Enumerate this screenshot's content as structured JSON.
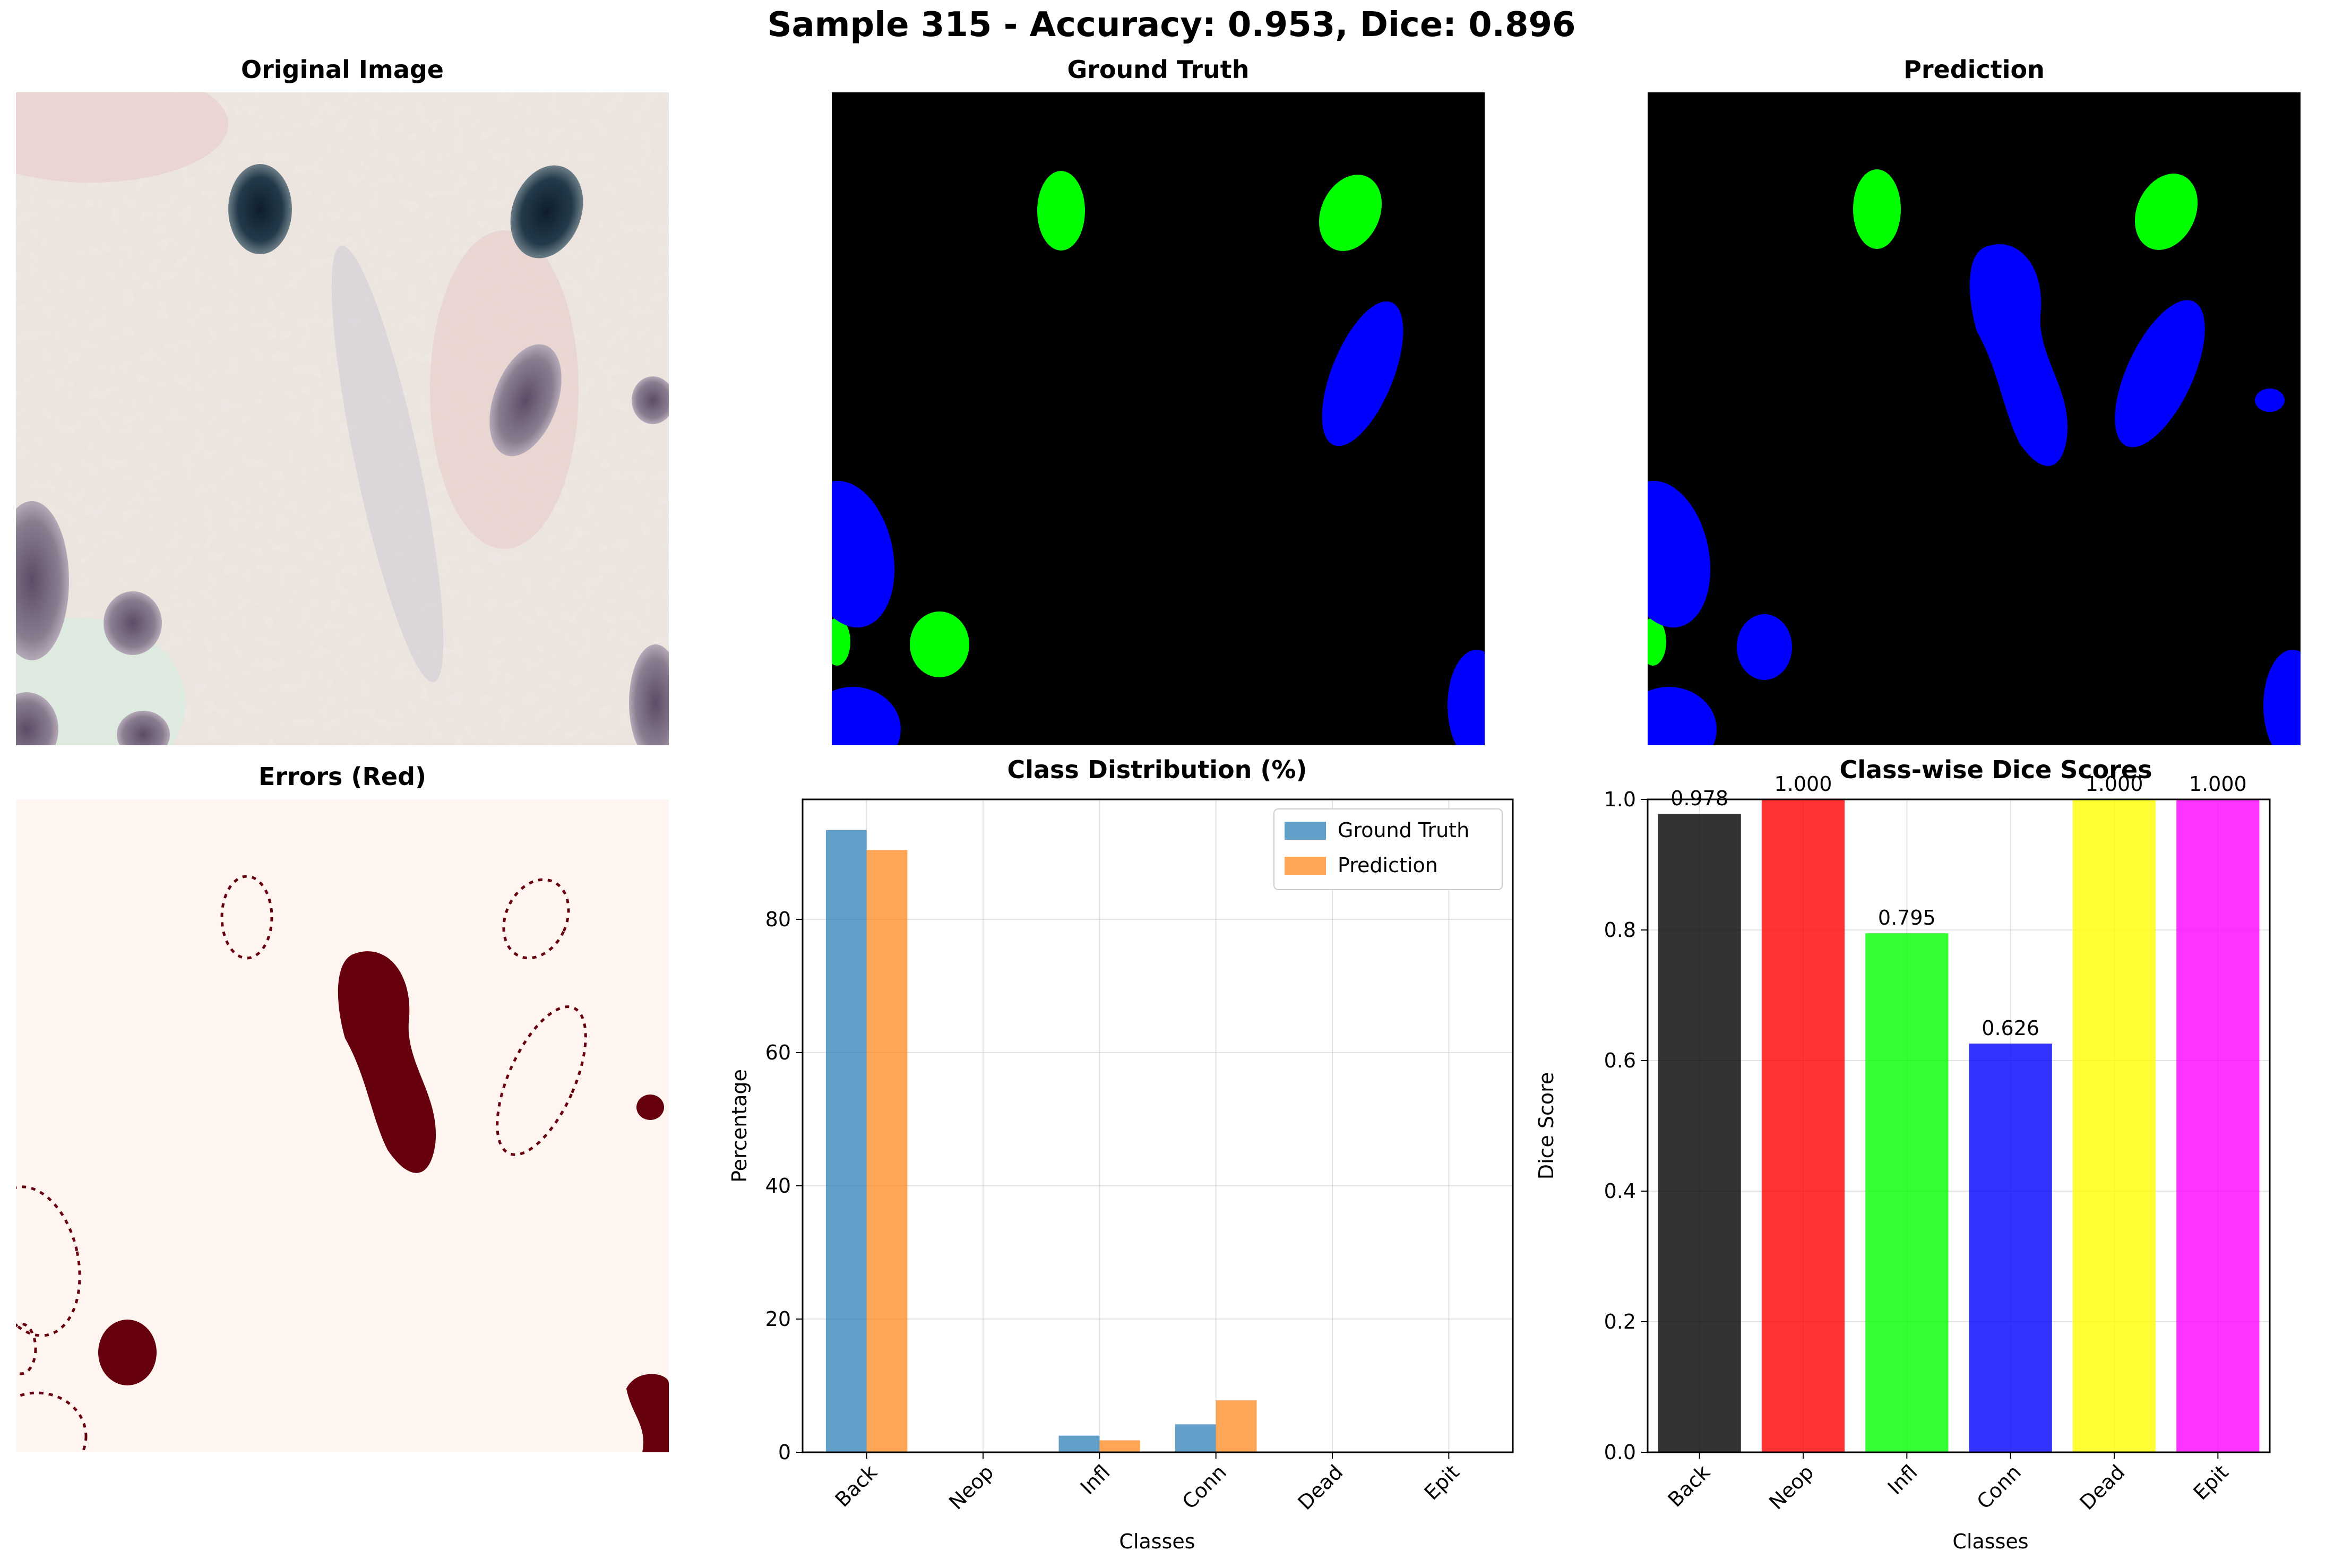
{
  "figure": {
    "title": "Sample 315 - Accuracy: 0.953, Dice: 0.896"
  },
  "panels": {
    "original": {
      "title": "Original Image"
    },
    "ground_truth": {
      "title": "Ground Truth"
    },
    "prediction": {
      "title": "Prediction"
    },
    "errors": {
      "title": "Errors (Red)"
    }
  },
  "colors": {
    "mask_background": "#000000",
    "green": "#00ff00",
    "blue": "#0000ff",
    "error_bg": "#fff5f0",
    "error_fg": "#67000d",
    "gt_bar": "#1f77b4",
    "pred_bar": "#ff7f0e",
    "dice_colors": [
      "#000000",
      "#ff0000",
      "#00ff00",
      "#0000ff",
      "#ffff00",
      "#ff00ff"
    ]
  },
  "chart_data": [
    {
      "type": "bar",
      "title": "Class Distribution (%)",
      "xlabel": "Classes",
      "ylabel": "Percentage",
      "categories": [
        "Back",
        "Neop",
        "Infl",
        "Conn",
        "Dead",
        "Epit"
      ],
      "series": [
        {
          "name": "Ground Truth",
          "values": [
            93.4,
            0,
            2.5,
            4.2,
            0,
            0
          ]
        },
        {
          "name": "Prediction",
          "values": [
            90.4,
            0,
            1.8,
            7.8,
            0,
            0
          ]
        }
      ],
      "ylim": [
        0,
        98
      ],
      "yticks": [
        0,
        20,
        40,
        60,
        80
      ],
      "grid": true,
      "legend": "top-right"
    },
    {
      "type": "bar",
      "title": "Class-wise Dice Scores",
      "xlabel": "Classes",
      "ylabel": "Dice Score",
      "categories": [
        "Back",
        "Neop",
        "Infl",
        "Conn",
        "Dead",
        "Epit"
      ],
      "values": [
        0.978,
        1.0,
        0.795,
        0.626,
        1.0,
        1.0
      ],
      "value_labels": [
        "0.978",
        "1.000",
        "0.795",
        "0.626",
        "1.000",
        "1.000"
      ],
      "ylim": [
        0,
        1.0
      ],
      "yticks": [
        "0.0",
        "0.2",
        "0.4",
        "0.6",
        "0.8",
        "1.0"
      ],
      "grid": true
    }
  ]
}
